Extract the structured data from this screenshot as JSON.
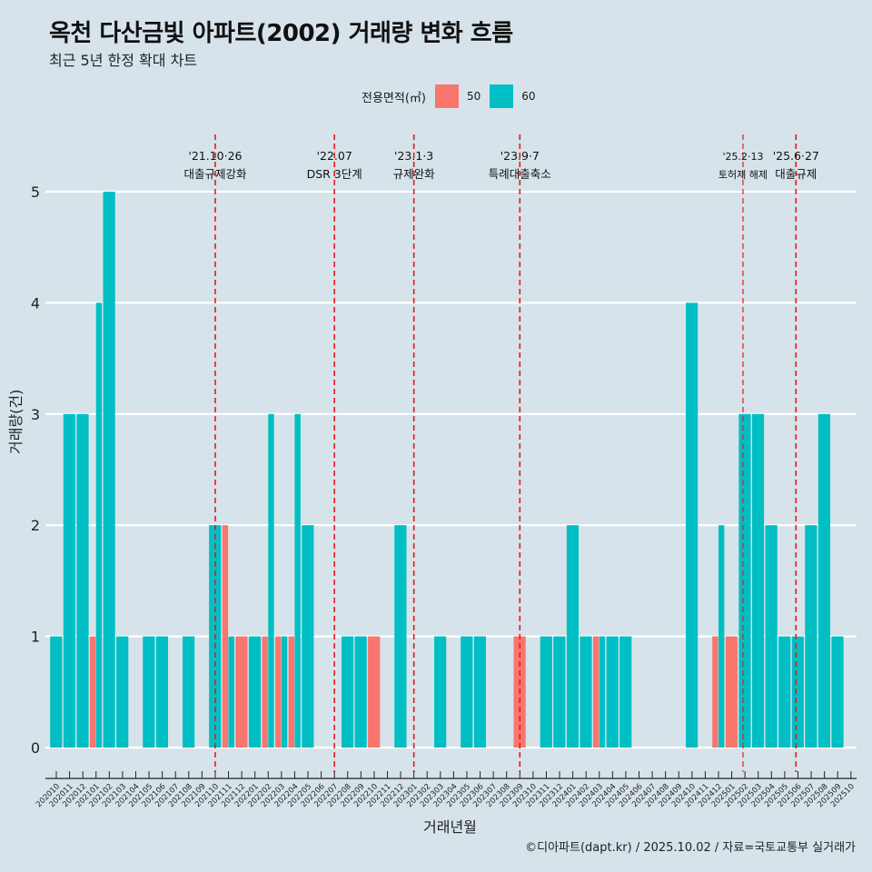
{
  "header": {
    "title": "옥천 다산금빛 아파트(2002) 거래량 변화 흐름",
    "subtitle": "최근 5년 한정 확대 차트"
  },
  "legend": {
    "title": "전용면적(㎡)",
    "items": [
      {
        "label": "50",
        "color": "#f8766d"
      },
      {
        "label": "60",
        "color": "#00bfc4"
      }
    ]
  },
  "caption": "©디아파트(dapt.kr) / 2025.10.02 / 자료=국토교통부 실거래가",
  "chart_data": {
    "type": "bar",
    "title": "옥천 다산금빛 아파트(2002) 거래량 변화 흐름",
    "subtitle": "최근 5년 한정 확대 차트",
    "xlabel": "거래년월",
    "ylabel": "거래량(건)",
    "ylim": [
      0,
      5
    ],
    "yticks": [
      0,
      1,
      2,
      3,
      4,
      5
    ],
    "grid": true,
    "legend_position": "top",
    "position": "dodge",
    "categories": [
      "202010",
      "202011",
      "202012",
      "202101",
      "202102",
      "202103",
      "202104",
      "202105",
      "202106",
      "202107",
      "202108",
      "202109",
      "202110",
      "202111",
      "202112",
      "202201",
      "202202",
      "202203",
      "202204",
      "202205",
      "202206",
      "202207",
      "202208",
      "202209",
      "202210",
      "202211",
      "202212",
      "202301",
      "202302",
      "202303",
      "202304",
      "202305",
      "202306",
      "202307",
      "202308",
      "202309",
      "202310",
      "202311",
      "202312",
      "202401",
      "202402",
      "202403",
      "202404",
      "202405",
      "202406",
      "202407",
      "202408",
      "202409",
      "202410",
      "202411",
      "202412",
      "202501",
      "202502",
      "202503",
      "202504",
      "202505",
      "202506",
      "202507",
      "202508",
      "202509",
      "202510"
    ],
    "series": [
      {
        "name": "50",
        "color": "#f8766d",
        "values": [
          0,
          0,
          0,
          1,
          0,
          0,
          0,
          0,
          0,
          0,
          0,
          0,
          0,
          2,
          1,
          0,
          1,
          1,
          1,
          0,
          0,
          0,
          0,
          0,
          1,
          0,
          0,
          0,
          0,
          0,
          0,
          0,
          0,
          0,
          0,
          1,
          0,
          0,
          0,
          0,
          0,
          1,
          0,
          0,
          0,
          0,
          0,
          0,
          0,
          0,
          1,
          1,
          0,
          0,
          0,
          0,
          0,
          0,
          0,
          0,
          0
        ]
      },
      {
        "name": "60",
        "color": "#00bfc4",
        "values": [
          1,
          3,
          3,
          4,
          5,
          1,
          0,
          1,
          1,
          0,
          1,
          0,
          2,
          1,
          0,
          1,
          3,
          1,
          3,
          2,
          0,
          0,
          1,
          1,
          0,
          0,
          2,
          0,
          0,
          1,
          0,
          1,
          1,
          0,
          0,
          0,
          0,
          1,
          1,
          2,
          1,
          1,
          1,
          1,
          0,
          0,
          0,
          0,
          4,
          0,
          2,
          0,
          3,
          3,
          2,
          1,
          1,
          2,
          3,
          1,
          0
        ]
      }
    ],
    "annotations": [
      {
        "x_index": 12.0,
        "date": "'21.10·26",
        "label": "대출규제강화",
        "small": false
      },
      {
        "x_index": 21.0,
        "date": "'22.07",
        "label": "DSR 3단계",
        "small": false
      },
      {
        "x_index": 27.0,
        "date": "'23.1·3",
        "label": "규제완화",
        "small": false
      },
      {
        "x_index": 35.0,
        "date": "'23.9·7",
        "label": "특례대출축소",
        "small": false
      },
      {
        "x_index": 51.85,
        "date": "'25.2·13",
        "label": "토허제 해제",
        "small": true
      },
      {
        "x_index": 55.85,
        "date": "'25.6·27",
        "label": "대출규제",
        "small": false
      }
    ],
    "annotation_color": "#e41a1c"
  }
}
